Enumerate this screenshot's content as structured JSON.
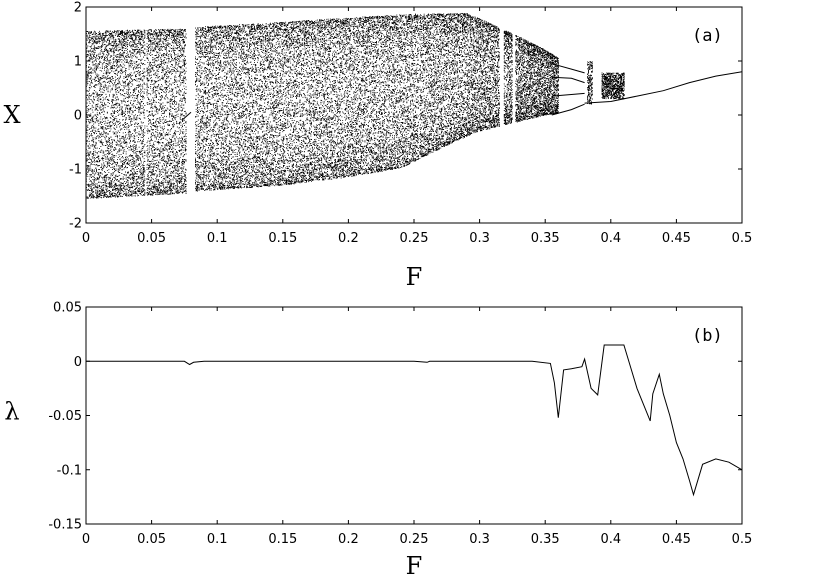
{
  "chart_data": [
    {
      "type": "scatter",
      "panel_label": "(a)",
      "xlabel": "F",
      "ylabel": "X",
      "xlim": [
        0,
        0.5
      ],
      "ylim": [
        -2,
        2
      ],
      "x_ticks": [
        "0",
        "0.05",
        "0.1",
        "0.15",
        "0.2",
        "0.25",
        "0.3",
        "0.35",
        "0.4",
        "0.45",
        "0.5"
      ],
      "y_ticks": [
        "-2",
        "-1",
        "0",
        "1",
        "2"
      ],
      "grid": false,
      "series": [
        {
          "upper_envelope": [
            [
              0,
              1.55
            ],
            [
              0.078,
              1.6
            ],
            [
              0.08,
              1.62
            ],
            [
              0.15,
              1.72
            ],
            [
              0.2,
              1.8
            ],
            [
              0.25,
              1.87
            ],
            [
              0.29,
              1.88
            ],
            [
              0.3,
              1.78
            ],
            [
              0.33,
              1.45
            ],
            [
              0.35,
              1.2
            ],
            [
              0.36,
              1.05
            ]
          ],
          "lower_envelope": [
            [
              0,
              -1.55
            ],
            [
              0.078,
              -1.45
            ],
            [
              0.08,
              -1.42
            ],
            [
              0.15,
              -1.3
            ],
            [
              0.2,
              -1.15
            ],
            [
              0.24,
              -0.98
            ],
            [
              0.28,
              -0.5
            ],
            [
              0.3,
              -0.3
            ],
            [
              0.33,
              -0.12
            ],
            [
              0.35,
              0.0
            ],
            [
              0.36,
              0.03
            ]
          ],
          "gaps": [
            [
              0.045,
              0.046
            ],
            [
              0.076,
              0.083
            ],
            [
              0.253,
              0.254
            ],
            [
              0.315,
              0.318
            ],
            [
              0.325,
              0.327
            ]
          ],
          "windows": [
            [
              0.382,
              0.386,
              0.2,
              1.0
            ],
            [
              0.393,
              0.41,
              0.3,
              0.78
            ]
          ],
          "periodic_branches": [
            [
              [
                0.355,
                0.95
              ],
              [
                0.37,
                0.85
              ],
              [
                0.38,
                0.78
              ]
            ],
            [
              [
                0.355,
                0.7
              ],
              [
                0.37,
                0.68
              ],
              [
                0.38,
                0.6
              ]
            ],
            [
              [
                0.355,
                0.35
              ],
              [
                0.37,
                0.38
              ],
              [
                0.38,
                0.4
              ]
            ],
            [
              [
                0.355,
                0.0
              ],
              [
                0.37,
                0.1
              ],
              [
                0.38,
                0.2
              ]
            ]
          ],
          "fixed_point": [
            [
              0.38,
              0.22
            ],
            [
              0.4,
              0.25
            ],
            [
              0.42,
              0.35
            ],
            [
              0.44,
              0.45
            ],
            [
              0.46,
              0.6
            ],
            [
              0.48,
              0.72
            ],
            [
              0.5,
              0.8
            ]
          ],
          "kink": [
            [
              0.073,
              -0.1
            ],
            [
              0.08,
              0.05
            ]
          ]
        }
      ]
    },
    {
      "type": "line",
      "panel_label": "(b)",
      "xlabel": "F",
      "ylabel": "λ",
      "xlim": [
        0,
        0.5
      ],
      "ylim": [
        -0.15,
        0.05
      ],
      "x_ticks": [
        "0",
        "0.05",
        "0.1",
        "0.15",
        "0.2",
        "0.25",
        "0.3",
        "0.35",
        "0.4",
        "0.45",
        "0.5"
      ],
      "y_ticks": [
        "-0.15",
        "-0.1",
        "-0.05",
        "0",
        "0.05"
      ],
      "grid": false,
      "series": [
        {
          "x": [
            0,
            0.05,
            0.075,
            0.079,
            0.082,
            0.09,
            0.15,
            0.2,
            0.25,
            0.26,
            0.262,
            0.3,
            0.34,
            0.354,
            0.357,
            0.36,
            0.364,
            0.37,
            0.378,
            0.38,
            0.385,
            0.39,
            0.395,
            0.4,
            0.41,
            0.42,
            0.425,
            0.43,
            0.432,
            0.437,
            0.44,
            0.445,
            0.45,
            0.455,
            0.46,
            0.463,
            0.47,
            0.48,
            0.49,
            0.5
          ],
          "y": [
            0,
            0,
            0,
            -0.003,
            -0.001,
            0,
            0,
            0,
            0,
            -0.001,
            0,
            0,
            0,
            -0.002,
            -0.02,
            -0.052,
            -0.008,
            -0.007,
            -0.005,
            0.002,
            -0.025,
            -0.031,
            0.015,
            0.015,
            0.015,
            -0.025,
            -0.04,
            -0.055,
            -0.03,
            -0.012,
            -0.03,
            -0.05,
            -0.075,
            -0.09,
            -0.11,
            -0.123,
            -0.095,
            -0.09,
            -0.093,
            -0.1
          ]
        }
      ]
    }
  ]
}
